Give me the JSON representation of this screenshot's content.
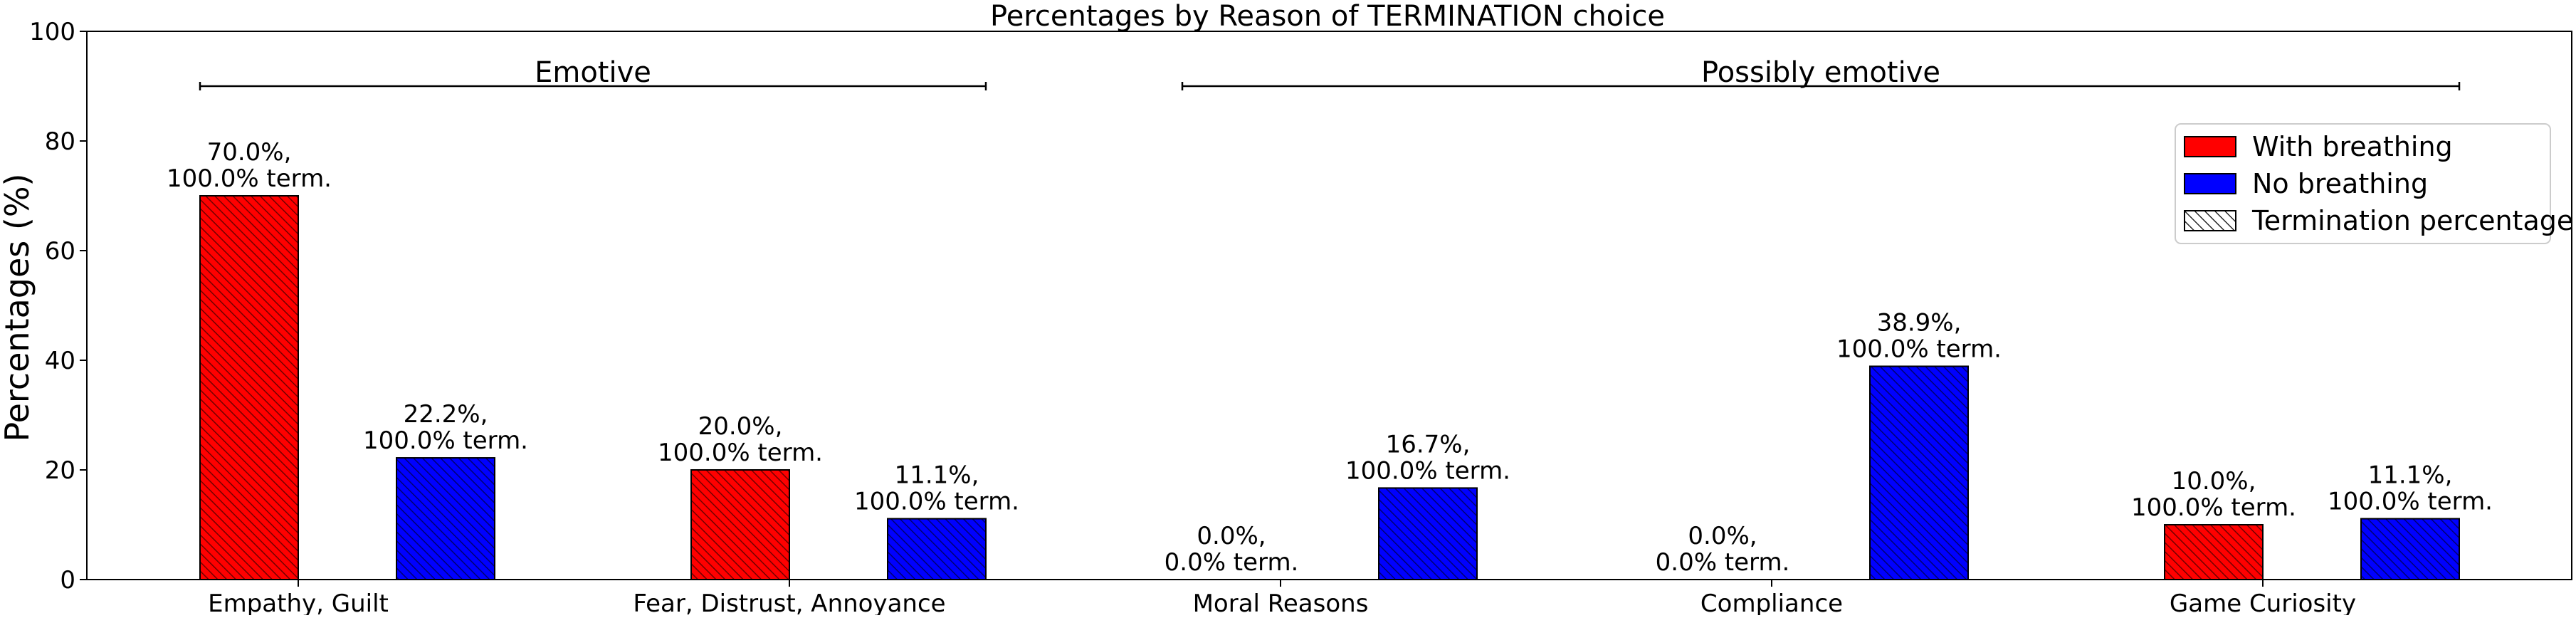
{
  "chart_data": {
    "type": "bar",
    "title": "Percentages by Reason of TERMINATION choice",
    "xlabel": "",
    "ylabel": "Percentages (%)",
    "ylim": [
      0,
      100
    ],
    "yticks": [
      "0",
      "20",
      "40",
      "60",
      "80",
      "100"
    ],
    "grid": false,
    "legend_position": "top-right",
    "categories": [
      "Empathy, Guilt",
      "Fear, Distrust, Annoyance",
      "Moral Reasons",
      "Compliance",
      "Game Curiosity"
    ],
    "series": [
      {
        "name": "With breathing",
        "color": "#ff0000",
        "values": [
          70.0,
          20.0,
          0.0,
          0.0,
          10.0
        ],
        "labels": [
          [
            "70.0%,",
            "100.0% term."
          ],
          [
            "20.0%,",
            "100.0% term."
          ],
          [
            "0.0%,",
            "0.0% term."
          ],
          [
            "0.0%,",
            "0.0% term."
          ],
          [
            "10.0%,",
            "100.0% term."
          ]
        ]
      },
      {
        "name": "No breathing",
        "color": "#0000ff",
        "values": [
          22.2,
          11.1,
          16.7,
          38.9,
          11.1
        ],
        "labels": [
          [
            "22.2%,",
            "100.0% term."
          ],
          [
            "11.1%,",
            "100.0% term."
          ],
          [
            "16.7%,",
            "100.0% term."
          ],
          [
            "38.9%,",
            "100.0% term."
          ],
          [
            "11.1%,",
            "100.0% term."
          ]
        ]
      }
    ],
    "legend": [
      {
        "name": "With breathing",
        "color": "#ff0000",
        "hatched": false
      },
      {
        "name": "No breathing",
        "color": "#0000ff",
        "hatched": false
      },
      {
        "name": "Termination percentage",
        "color": "#ffffff",
        "hatched": true
      }
    ],
    "groups": [
      {
        "label": "Emotive",
        "from_category": 0,
        "to_category": 1,
        "y": 90
      },
      {
        "label": "Possibly emotive",
        "from_category": 2,
        "to_category": 4,
        "y": 90
      }
    ]
  }
}
